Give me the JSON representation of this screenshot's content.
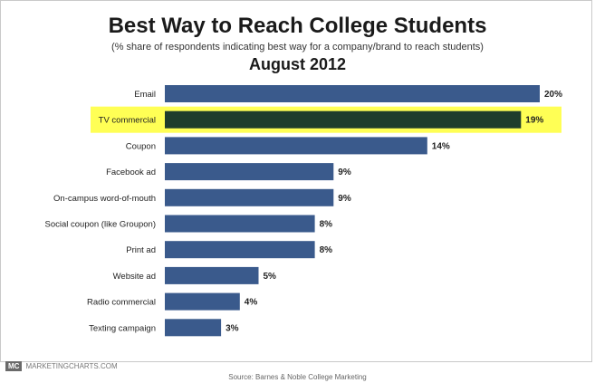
{
  "title": "Best Way to Reach College Students",
  "subtitle": "(% share of respondents indicating best way for a company/brand to reach students)",
  "date_label": "August 2012",
  "branding": {
    "logo_text": "MC",
    "site": "MARKETINGCHARTS.COM"
  },
  "source": "Source:  Barnes & Noble College Marketing",
  "colors": {
    "bar": "#3a5a8c",
    "highlight_bar": "#1f3d2c",
    "highlight_band": "#ffff55"
  },
  "chart_data": {
    "type": "bar",
    "orientation": "horizontal",
    "categories": [
      "Email",
      "TV commercial",
      "Coupon",
      "Facebook ad",
      "On-campus word-of-mouth",
      "Social coupon (like Groupon)",
      "Print ad",
      "Website ad",
      "Radio commercial",
      "Texting campaign"
    ],
    "values": [
      20,
      19,
      14,
      9,
      9,
      8,
      8,
      5,
      4,
      3
    ],
    "value_labels": [
      "20%",
      "19%",
      "14%",
      "9%",
      "9%",
      "8%",
      "8%",
      "5%",
      "4%",
      "3%"
    ],
    "highlighted": "TV commercial",
    "xlim": [
      0,
      20
    ],
    "grid": false,
    "legend": "none"
  }
}
